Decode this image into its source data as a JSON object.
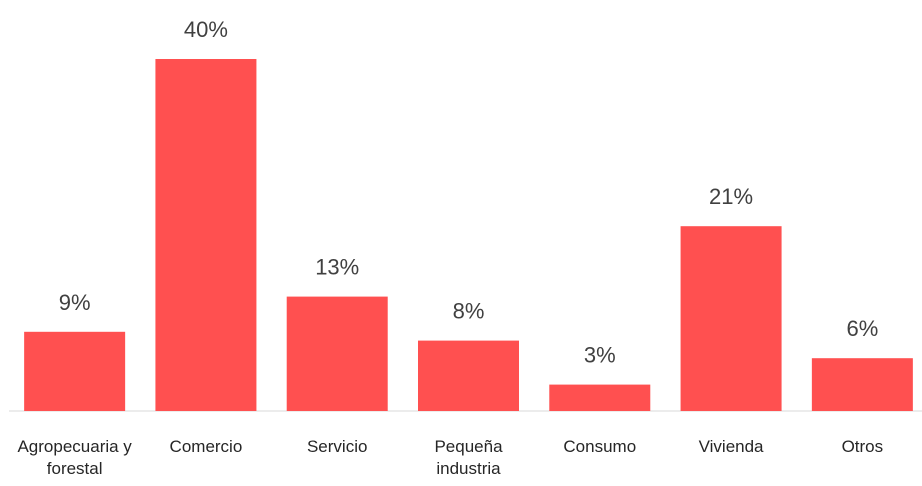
{
  "chart_data": {
    "type": "bar",
    "categories": [
      "Agropecuaria y forestal",
      "Comercio",
      "Servicio",
      "Pequeña industria",
      "Consumo",
      "Vivienda",
      "Otros"
    ],
    "values": [
      9,
      40,
      13,
      8,
      3,
      21,
      6
    ],
    "value_labels": [
      "9%",
      "40%",
      "13%",
      "8%",
      "3%",
      "21%",
      "6%"
    ],
    "color": "#ff5050",
    "ylim": [
      0,
      40
    ]
  }
}
